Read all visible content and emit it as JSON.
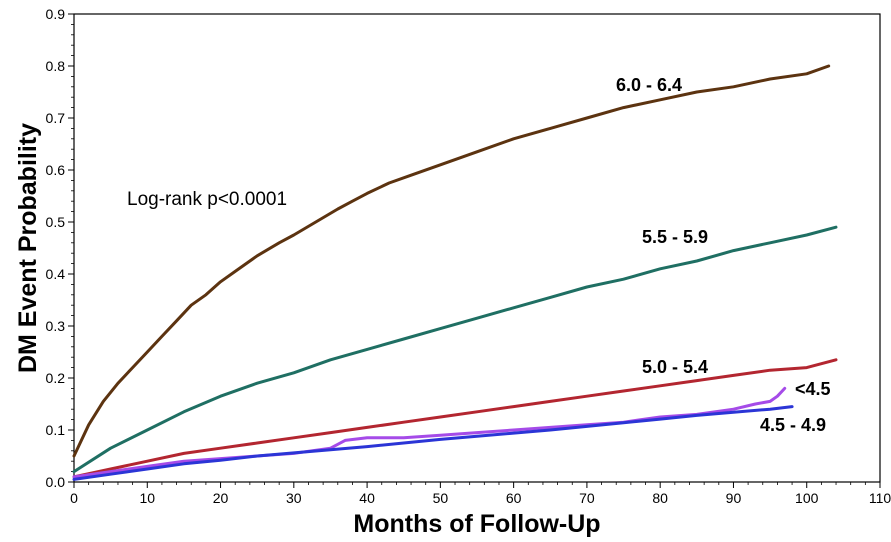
{
  "chart_data": {
    "type": "line",
    "title": "",
    "xlabel": "Months of Follow-Up",
    "ylabel": "DM Event Probability",
    "xlim": [
      0,
      110
    ],
    "ylim": [
      0,
      0.9
    ],
    "xticks": [
      0,
      10,
      20,
      30,
      40,
      50,
      60,
      70,
      80,
      90,
      100,
      110
    ],
    "yticks": [
      "0.0",
      "0.1",
      "0.2",
      "0.3",
      "0.4",
      "0.5",
      "0.6",
      "0.7",
      "0.8",
      "0.9"
    ],
    "grid": false,
    "legend": "none; series labelled inline on the plot",
    "annotation": "Log-rank p<0.0001",
    "series": [
      {
        "name": "6.0 - 6.4",
        "color": "#5c3310",
        "x": [
          0,
          2,
          4,
          6,
          8,
          10,
          12,
          14,
          16,
          18,
          20,
          22,
          25,
          28,
          30,
          33,
          36,
          38,
          40,
          43,
          46,
          50,
          55,
          60,
          65,
          70,
          75,
          80,
          85,
          90,
          95,
          100,
          103
        ],
        "y": [
          0.05,
          0.11,
          0.155,
          0.19,
          0.22,
          0.25,
          0.28,
          0.31,
          0.34,
          0.36,
          0.385,
          0.405,
          0.435,
          0.46,
          0.475,
          0.5,
          0.525,
          0.54,
          0.555,
          0.575,
          0.59,
          0.61,
          0.635,
          0.66,
          0.68,
          0.7,
          0.72,
          0.735,
          0.75,
          0.76,
          0.775,
          0.785,
          0.8
        ]
      },
      {
        "name": "5.5 - 5.9",
        "color": "#1f6f63",
        "x": [
          0,
          5,
          10,
          15,
          20,
          25,
          30,
          35,
          40,
          45,
          50,
          55,
          60,
          65,
          70,
          75,
          80,
          85,
          90,
          95,
          100,
          104
        ],
        "y": [
          0.02,
          0.065,
          0.1,
          0.135,
          0.165,
          0.19,
          0.21,
          0.235,
          0.255,
          0.275,
          0.295,
          0.315,
          0.335,
          0.355,
          0.375,
          0.39,
          0.41,
          0.425,
          0.445,
          0.46,
          0.475,
          0.49
        ]
      },
      {
        "name": "5.0 - 5.4",
        "color": "#b32630",
        "x": [
          0,
          5,
          10,
          15,
          20,
          25,
          30,
          35,
          40,
          45,
          50,
          55,
          60,
          65,
          70,
          75,
          80,
          85,
          90,
          95,
          100,
          104
        ],
        "y": [
          0.01,
          0.025,
          0.04,
          0.055,
          0.065,
          0.075,
          0.085,
          0.095,
          0.105,
          0.115,
          0.125,
          0.135,
          0.145,
          0.155,
          0.165,
          0.175,
          0.185,
          0.195,
          0.205,
          0.215,
          0.22,
          0.235
        ]
      },
      {
        "name": "<4.5",
        "color": "#a54be8",
        "x": [
          0,
          5,
          10,
          15,
          20,
          25,
          30,
          35,
          37,
          40,
          45,
          50,
          55,
          60,
          65,
          70,
          75,
          80,
          85,
          90,
          93,
          95,
          96,
          97
        ],
        "y": [
          0.01,
          0.02,
          0.03,
          0.04,
          0.045,
          0.05,
          0.055,
          0.065,
          0.08,
          0.085,
          0.085,
          0.09,
          0.095,
          0.1,
          0.105,
          0.11,
          0.115,
          0.125,
          0.13,
          0.14,
          0.15,
          0.155,
          0.165,
          0.18
        ]
      },
      {
        "name": "4.5 - 4.9",
        "color": "#2b35d6",
        "x": [
          0,
          5,
          10,
          15,
          20,
          25,
          30,
          35,
          40,
          45,
          50,
          55,
          60,
          65,
          70,
          75,
          80,
          85,
          90,
          95,
          98
        ],
        "y": [
          0.005,
          0.015,
          0.025,
          0.035,
          0.042,
          0.05,
          0.056,
          0.062,
          0.068,
          0.075,
          0.082,
          0.088,
          0.094,
          0.1,
          0.107,
          0.114,
          0.121,
          0.128,
          0.134,
          0.14,
          0.145
        ]
      }
    ]
  }
}
